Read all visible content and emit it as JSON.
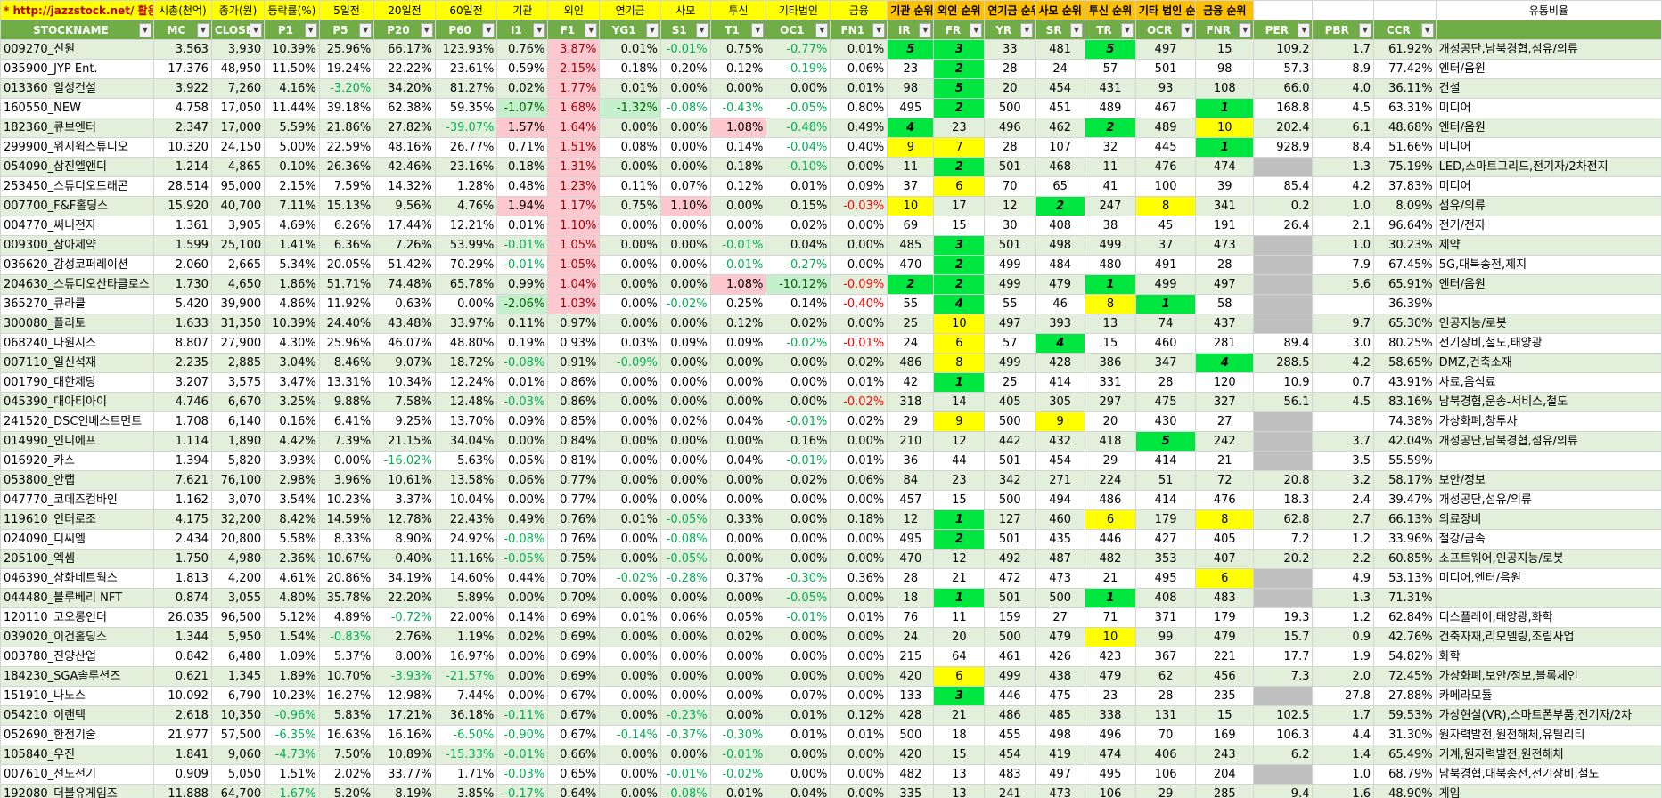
{
  "top_labels": [
    "* http://jazzstock.net/ 활용",
    "시총(천억)",
    "종가(원)",
    "등락률(%)",
    "5일전",
    "20일전",
    "60일전",
    "기관",
    "외인",
    "연기금",
    "사모",
    "투신",
    "기타법인",
    "금융",
    "기관 순위",
    "외인 순위",
    "연기금 순위",
    "사모 순위",
    "투신 순위",
    "기타 법인 순위",
    "금융 순위",
    "",
    "",
    "",
    "유통비율"
  ],
  "columns": [
    "STOCKNAME",
    "MC",
    "CLOSE",
    "P1",
    "P5",
    "P20",
    "P60",
    "I1",
    "F1",
    "YG1",
    "S1",
    "T1",
    "OC1",
    "FN1",
    "IR",
    "FR",
    "YR",
    "SR",
    "TR",
    "OCR",
    "FNR",
    "PER",
    "PBR",
    "CCR",
    ""
  ],
  "rows": [
    [
      "009270_신원",
      "3.563",
      "3,930",
      "10.39%",
      "25.96%",
      "66.17%",
      "123.93%",
      "0.76%",
      "3.87%",
      "0.01%",
      "-0.01%",
      "0.75%",
      "-0.77%",
      "0.01%",
      "5",
      "3",
      "33",
      "481",
      "5",
      "497",
      "15",
      "109.2",
      "1.7",
      "61.92%",
      "개성공단,남북경협,섬유/의류"
    ],
    [
      "035900_JYP Ent.",
      "17.376",
      "48,950",
      "11.50%",
      "19.24%",
      "22.22%",
      "23.61%",
      "0.59%",
      "2.15%",
      "0.18%",
      "0.20%",
      "0.12%",
      "-0.19%",
      "0.06%",
      "23",
      "2",
      "28",
      "24",
      "57",
      "501",
      "98",
      "57.3",
      "8.9",
      "77.42%",
      "엔터/음원"
    ],
    [
      "013360_일성건설",
      "3.922",
      "7,260",
      "4.16%",
      "-3.20%",
      "34.20%",
      "81.27%",
      "0.02%",
      "1.77%",
      "0.01%",
      "0.00%",
      "0.00%",
      "0.00%",
      "0.01%",
      "98",
      "5",
      "20",
      "454",
      "431",
      "93",
      "108",
      "66.0",
      "4.0",
      "36.11%",
      "건설"
    ],
    [
      "160550_NEW",
      "4.758",
      "17,050",
      "11.44%",
      "39.18%",
      "62.38%",
      "59.35%",
      "-1.07%",
      "1.68%",
      "-1.32%",
      "-0.08%",
      "-0.43%",
      "-0.05%",
      "0.80%",
      "495",
      "2",
      "500",
      "451",
      "489",
      "467",
      "1",
      "168.8",
      "4.5",
      "63.31%",
      "미디어"
    ],
    [
      "182360_큐브엔터",
      "2.347",
      "17,000",
      "5.59%",
      "21.86%",
      "27.82%",
      "-39.07%",
      "1.57%",
      "1.64%",
      "0.00%",
      "0.00%",
      "1.08%",
      "-0.48%",
      "0.49%",
      "4",
      "23",
      "496",
      "462",
      "2",
      "489",
      "10",
      "202.4",
      "6.1",
      "48.68%",
      "엔터/음원"
    ],
    [
      "299900_위지윅스튜디오",
      "10.320",
      "24,150",
      "5.00%",
      "22.59%",
      "48.16%",
      "26.77%",
      "0.71%",
      "1.51%",
      "0.08%",
      "0.00%",
      "0.14%",
      "-0.04%",
      "0.40%",
      "9",
      "7",
      "28",
      "107",
      "32",
      "445",
      "1",
      "928.9",
      "8.4",
      "51.66%",
      "미디어"
    ],
    [
      "054090_삼진엘앤디",
      "1.214",
      "4,865",
      "0.10%",
      "26.36%",
      "42.46%",
      "23.16%",
      "0.18%",
      "1.31%",
      "0.00%",
      "0.00%",
      "0.18%",
      "-0.10%",
      "0.00%",
      "11",
      "2",
      "501",
      "468",
      "11",
      "476",
      "474",
      "",
      "1.3",
      "75.19%",
      "LED,스마트그리드,전기자/2차전지"
    ],
    [
      "253450_스튜디오드래곤",
      "28.514",
      "95,000",
      "2.15%",
      "7.59%",
      "14.32%",
      "1.28%",
      "0.48%",
      "1.23%",
      "0.11%",
      "0.07%",
      "0.12%",
      "0.01%",
      "0.09%",
      "37",
      "6",
      "70",
      "65",
      "41",
      "100",
      "39",
      "85.4",
      "4.2",
      "37.83%",
      "미디어"
    ],
    [
      "007700_F&F홀딩스",
      "15.920",
      "40,700",
      "7.11%",
      "15.13%",
      "9.56%",
      "4.76%",
      "1.94%",
      "1.17%",
      "0.75%",
      "1.10%",
      "0.00%",
      "0.15%",
      "-0.03%",
      "10",
      "17",
      "12",
      "2",
      "247",
      "8",
      "341",
      "0.2",
      "1.0",
      "8.09%",
      "섬유/의류"
    ],
    [
      "004770_써니전자",
      "1.361",
      "3,905",
      "4.69%",
      "6.26%",
      "17.44%",
      "12.21%",
      "0.01%",
      "1.10%",
      "0.00%",
      "0.00%",
      "0.00%",
      "0.02%",
      "0.00%",
      "69",
      "15",
      "30",
      "408",
      "38",
      "45",
      "191",
      "26.4",
      "2.1",
      "96.64%",
      "전기/전자"
    ],
    [
      "009300_삼아제약",
      "1.599",
      "25,100",
      "1.41%",
      "6.36%",
      "7.26%",
      "53.99%",
      "-0.01%",
      "1.05%",
      "0.00%",
      "0.00%",
      "-0.01%",
      "0.04%",
      "0.00%",
      "485",
      "3",
      "501",
      "498",
      "499",
      "37",
      "473",
      "",
      "1.0",
      "30.23%",
      "제약"
    ],
    [
      "036620_감성코퍼레이션",
      "2.060",
      "2,665",
      "5.34%",
      "20.05%",
      "51.42%",
      "70.29%",
      "-0.01%",
      "1.05%",
      "0.00%",
      "0.00%",
      "-0.01%",
      "-0.27%",
      "0.00%",
      "470",
      "2",
      "499",
      "484",
      "480",
      "491",
      "28",
      "",
      "7.9",
      "67.45%",
      "5G,대북송전,제지"
    ],
    [
      "204630_스튜디오산타클로스",
      "1.730",
      "4,650",
      "1.86%",
      "51.71%",
      "74.48%",
      "65.78%",
      "0.99%",
      "1.04%",
      "0.00%",
      "0.00%",
      "1.08%",
      "-10.12%",
      "-0.09%",
      "2",
      "2",
      "499",
      "479",
      "1",
      "499",
      "497",
      "",
      "5.6",
      "65.91%",
      "엔터/음원"
    ],
    [
      "365270_큐라클",
      "5.420",
      "39,900",
      "4.86%",
      "11.92%",
      "0.63%",
      "0.00%",
      "-2.06%",
      "1.03%",
      "0.00%",
      "-0.02%",
      "0.25%",
      "0.14%",
      "-0.40%",
      "55",
      "4",
      "55",
      "46",
      "8",
      "1",
      "58",
      "",
      "",
      "36.39%",
      ""
    ],
    [
      "300080_플리토",
      "1.633",
      "31,350",
      "10.39%",
      "24.40%",
      "43.48%",
      "33.97%",
      "0.11%",
      "0.97%",
      "0.00%",
      "0.00%",
      "0.12%",
      "0.02%",
      "0.00%",
      "25",
      "10",
      "497",
      "393",
      "13",
      "74",
      "437",
      "",
      "9.7",
      "65.30%",
      "인공지능/로봇"
    ],
    [
      "068240_다원시스",
      "8.807",
      "27,900",
      "4.30%",
      "25.96%",
      "46.07%",
      "48.80%",
      "0.19%",
      "0.93%",
      "0.03%",
      "0.09%",
      "0.09%",
      "-0.02%",
      "-0.01%",
      "24",
      "6",
      "57",
      "4",
      "15",
      "460",
      "281",
      "89.4",
      "3.0",
      "80.25%",
      "전기장비,철도,태양광"
    ],
    [
      "007110_일신석재",
      "2.235",
      "2,885",
      "3.04%",
      "8.46%",
      "9.07%",
      "18.72%",
      "-0.08%",
      "0.91%",
      "-0.09%",
      "0.00%",
      "0.00%",
      "0.00%",
      "0.02%",
      "486",
      "8",
      "499",
      "428",
      "386",
      "347",
      "4",
      "288.5",
      "4.2",
      "58.65%",
      "DMZ,건축소재"
    ],
    [
      "001790_대한제당",
      "3.207",
      "3,575",
      "3.47%",
      "13.31%",
      "10.34%",
      "12.24%",
      "0.01%",
      "0.86%",
      "0.00%",
      "0.00%",
      "0.00%",
      "0.00%",
      "0.01%",
      "42",
      "1",
      "25",
      "414",
      "331",
      "28",
      "120",
      "10.9",
      "0.7",
      "43.91%",
      "사료,음식료"
    ],
    [
      "045390_대아티아이",
      "4.746",
      "6,670",
      "3.25%",
      "9.88%",
      "7.58%",
      "12.48%",
      "-0.03%",
      "0.86%",
      "0.00%",
      "0.00%",
      "0.00%",
      "0.00%",
      "-0.02%",
      "318",
      "14",
      "405",
      "305",
      "297",
      "475",
      "327",
      "56.1",
      "4.5",
      "83.16%",
      "남북경협,운송-서비스,철도"
    ],
    [
      "241520_DSC인베스트먼트",
      "1.708",
      "6,140",
      "0.16%",
      "6.41%",
      "9.25%",
      "13.70%",
      "0.09%",
      "0.85%",
      "0.00%",
      "0.02%",
      "0.04%",
      "-0.01%",
      "0.02%",
      "29",
      "9",
      "500",
      "9",
      "20",
      "430",
      "27",
      "",
      "",
      "74.38%",
      "가상화폐,창투사"
    ],
    [
      "014990_인디에프",
      "1.114",
      "1,890",
      "4.42%",
      "7.39%",
      "21.15%",
      "34.04%",
      "0.00%",
      "0.84%",
      "0.00%",
      "0.00%",
      "0.00%",
      "0.16%",
      "0.00%",
      "210",
      "12",
      "442",
      "432",
      "418",
      "5",
      "242",
      "",
      "3.7",
      "42.04%",
      "개성공단,남북경협,섬유/의류"
    ],
    [
      "016920_카스",
      "1.394",
      "5,820",
      "3.93%",
      "0.00%",
      "-16.02%",
      "5.63%",
      "0.05%",
      "0.81%",
      "0.00%",
      "0.00%",
      "0.04%",
      "-0.01%",
      "0.01%",
      "36",
      "44",
      "501",
      "454",
      "29",
      "414",
      "21",
      "",
      "3.5",
      "55.59%",
      ""
    ],
    [
      "053800_안랩",
      "7.621",
      "76,100",
      "2.98%",
      "3.96%",
      "10.61%",
      "13.58%",
      "0.06%",
      "0.77%",
      "0.00%",
      "0.00%",
      "0.00%",
      "0.02%",
      "0.06%",
      "84",
      "23",
      "342",
      "271",
      "224",
      "51",
      "72",
      "20.8",
      "3.2",
      "58.17%",
      "보안/정보"
    ],
    [
      "047770_코데즈컴바인",
      "1.162",
      "3,070",
      "3.54%",
      "10.23%",
      "3.37%",
      "10.04%",
      "0.00%",
      "0.77%",
      "0.00%",
      "0.00%",
      "0.00%",
      "0.00%",
      "0.00%",
      "457",
      "15",
      "500",
      "494",
      "486",
      "414",
      "476",
      "18.3",
      "2.4",
      "39.47%",
      "개성공단,섬유/의류"
    ],
    [
      "119610_인터로조",
      "4.175",
      "32,200",
      "8.42%",
      "14.59%",
      "12.78%",
      "22.43%",
      "0.49%",
      "0.76%",
      "0.01%",
      "-0.05%",
      "0.33%",
      "0.00%",
      "0.18%",
      "12",
      "1",
      "127",
      "460",
      "6",
      "179",
      "8",
      "62.8",
      "2.7",
      "66.13%",
      "의료장비"
    ],
    [
      "024090_디씨엠",
      "2.434",
      "20,800",
      "5.58%",
      "8.33%",
      "8.90%",
      "24.92%",
      "-0.08%",
      "0.76%",
      "0.00%",
      "-0.08%",
      "0.00%",
      "0.00%",
      "0.00%",
      "495",
      "2",
      "501",
      "435",
      "446",
      "427",
      "405",
      "7.2",
      "1.2",
      "33.96%",
      "철강/금속"
    ],
    [
      "205100_엑셈",
      "1.750",
      "4,980",
      "2.36%",
      "10.67%",
      "0.40%",
      "11.16%",
      "-0.05%",
      "0.75%",
      "0.00%",
      "-0.05%",
      "0.00%",
      "0.00%",
      "0.00%",
      "470",
      "12",
      "492",
      "487",
      "482",
      "353",
      "407",
      "20.2",
      "2.2",
      "60.85%",
      "소프트웨어,인공지능/로봇"
    ],
    [
      "046390_삼화네트웍스",
      "1.813",
      "4,200",
      "4.61%",
      "20.86%",
      "34.19%",
      "14.60%",
      "0.44%",
      "0.70%",
      "-0.02%",
      "-0.28%",
      "0.37%",
      "-0.30%",
      "0.36%",
      "28",
      "21",
      "472",
      "473",
      "21",
      "495",
      "6",
      "",
      "4.9",
      "53.13%",
      "미디어,엔터/음원"
    ],
    [
      "044480_블루베리 NFT",
      "0.874",
      "3,055",
      "4.80%",
      "35.78%",
      "22.20%",
      "5.89%",
      "0.00%",
      "0.70%",
      "0.00%",
      "0.00%",
      "0.00%",
      "-0.05%",
      "0.00%",
      "18",
      "1",
      "501",
      "500",
      "1",
      "408",
      "483",
      "",
      "1.3",
      "71.31%",
      ""
    ],
    [
      "120110_코오롱인더",
      "26.035",
      "96,500",
      "5.12%",
      "4.89%",
      "-0.72%",
      "22.00%",
      "0.14%",
      "0.69%",
      "0.01%",
      "0.06%",
      "0.05%",
      "-0.01%",
      "0.01%",
      "76",
      "11",
      "159",
      "27",
      "71",
      "371",
      "179",
      "19.3",
      "1.2",
      "62.84%",
      "디스플레이,태양광,화학"
    ],
    [
      "039020_이건홀딩스",
      "1.344",
      "5,950",
      "1.54%",
      "-0.83%",
      "2.76%",
      "1.19%",
      "0.02%",
      "0.69%",
      "0.00%",
      "0.00%",
      "0.02%",
      "0.00%",
      "0.00%",
      "24",
      "20",
      "500",
      "479",
      "10",
      "99",
      "479",
      "15.7",
      "0.9",
      "42.76%",
      "건축자재,리모델링,조림사업"
    ],
    [
      "003780_진양산업",
      "0.842",
      "6,480",
      "1.09%",
      "5.37%",
      "8.00%",
      "16.97%",
      "0.00%",
      "0.69%",
      "0.00%",
      "0.00%",
      "0.00%",
      "0.00%",
      "0.00%",
      "215",
      "64",
      "461",
      "426",
      "423",
      "367",
      "221",
      "17.7",
      "1.9",
      "54.82%",
      "화학"
    ],
    [
      "184230_SGA솔루션즈",
      "0.621",
      "1,345",
      "1.89%",
      "10.70%",
      "-3.93%",
      "-21.57%",
      "0.00%",
      "0.69%",
      "0.00%",
      "0.00%",
      "0.00%",
      "0.00%",
      "0.00%",
      "420",
      "6",
      "499",
      "438",
      "479",
      "62",
      "456",
      "7.3",
      "2.0",
      "72.45%",
      "가상화폐,보안/정보,블록체인"
    ],
    [
      "151910_나노스",
      "10.092",
      "6,790",
      "10.23%",
      "16.27%",
      "12.98%",
      "7.44%",
      "0.00%",
      "0.67%",
      "0.00%",
      "0.00%",
      "0.00%",
      "0.07%",
      "0.00%",
      "133",
      "3",
      "446",
      "475",
      "23",
      "28",
      "235",
      "",
      "27.8",
      "27.88%",
      "카메라모듈"
    ],
    [
      "054210_이랜텍",
      "2.618",
      "10,350",
      "-0.96%",
      "5.83%",
      "17.21%",
      "36.18%",
      "-0.11%",
      "0.67%",
      "0.00%",
      "-0.23%",
      "0.00%",
      "0.01%",
      "0.12%",
      "428",
      "21",
      "486",
      "485",
      "338",
      "131",
      "15",
      "102.5",
      "1.7",
      "59.53%",
      "가상현실(VR),스마트폰부품,전기자/2차"
    ],
    [
      "052690_한전기술",
      "21.977",
      "57,500",
      "-6.35%",
      "16.63%",
      "16.16%",
      "-6.50%",
      "-0.90%",
      "0.67%",
      "-0.14%",
      "-0.37%",
      "-0.30%",
      "0.01%",
      "0.01%",
      "500",
      "18",
      "455",
      "498",
      "496",
      "70",
      "169",
      "106.3",
      "4.4",
      "31.30%",
      "원자력발전,원전해체,유틸리티"
    ],
    [
      "105840_우진",
      "1.841",
      "9,060",
      "-4.73%",
      "7.50%",
      "10.89%",
      "-15.33%",
      "-0.01%",
      "0.66%",
      "0.00%",
      "0.00%",
      "-0.01%",
      "0.00%",
      "0.00%",
      "420",
      "15",
      "454",
      "419",
      "474",
      "406",
      "243",
      "6.2",
      "1.4",
      "65.49%",
      "기계,원자력발전,원전해체"
    ],
    [
      "007610_선도전기",
      "0.909",
      "5,050",
      "1.51%",
      "2.02%",
      "33.77%",
      "1.71%",
      "-0.03%",
      "0.65%",
      "0.00%",
      "-0.01%",
      "-0.02%",
      "0.00%",
      "0.00%",
      "482",
      "13",
      "483",
      "497",
      "495",
      "106",
      "204",
      "",
      "1.0",
      "68.79%",
      "남북경협,대북송전,전기장비,철도"
    ],
    [
      "192080_더블유게임즈",
      "11.888",
      "64,700",
      "-1.67%",
      "5.20%",
      "8.19%",
      "3.85%",
      "-0.17%",
      "0.64%",
      "0.00%",
      "-0.08%",
      "0.01%",
      "0.04%",
      "0.00%",
      "335",
      "13",
      "241",
      "473",
      "106",
      "29",
      "285",
      "9.4",
      "1.6",
      "48.90%",
      "게임"
    ]
  ]
}
